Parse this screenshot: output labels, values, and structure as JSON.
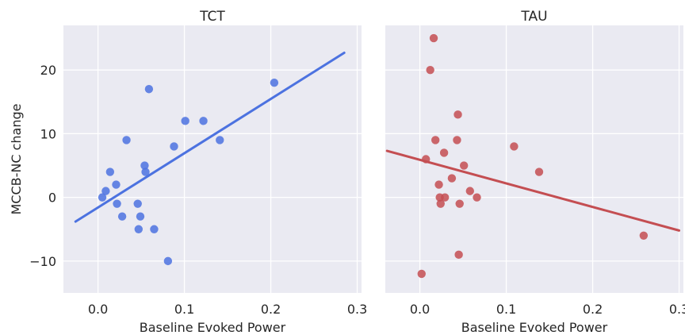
{
  "chart_data": [
    {
      "type": "scatter",
      "title": "TCT",
      "xlabel": "Baseline Evoked Power",
      "ylabel": "MCCB-NC change",
      "xlim": [
        -0.04,
        0.305
      ],
      "ylim": [
        -15,
        27
      ],
      "xticks": [
        0.0,
        0.1,
        0.2,
        0.3
      ],
      "xtick_labels": [
        "0.0",
        "0.1",
        "0.2",
        "0.3"
      ],
      "yticks": [
        -10,
        0,
        10,
        20
      ],
      "ytick_labels": [
        "−10",
        "0",
        "10",
        "20"
      ],
      "grid": true,
      "color": "#4c72e0",
      "points": [
        {
          "x": 0.005,
          "y": 0
        },
        {
          "x": 0.009,
          "y": 1
        },
        {
          "x": 0.014,
          "y": 4
        },
        {
          "x": 0.021,
          "y": 2
        },
        {
          "x": 0.022,
          "y": -1
        },
        {
          "x": 0.028,
          "y": -3
        },
        {
          "x": 0.033,
          "y": 9
        },
        {
          "x": 0.046,
          "y": -1
        },
        {
          "x": 0.047,
          "y": -5
        },
        {
          "x": 0.049,
          "y": -3
        },
        {
          "x": 0.054,
          "y": 5
        },
        {
          "x": 0.055,
          "y": 4
        },
        {
          "x": 0.059,
          "y": 17
        },
        {
          "x": 0.065,
          "y": -5
        },
        {
          "x": 0.081,
          "y": -10
        },
        {
          "x": 0.088,
          "y": 8
        },
        {
          "x": 0.101,
          "y": 12
        },
        {
          "x": 0.122,
          "y": 12
        },
        {
          "x": 0.141,
          "y": 9
        },
        {
          "x": 0.204,
          "y": 18
        }
      ],
      "fit": {
        "x": [
          -0.026,
          0.285
        ],
        "y": [
          -3.8,
          22.7
        ]
      }
    },
    {
      "type": "scatter",
      "title": "TAU",
      "xlabel": "Baseline Evoked Power",
      "ylabel": "",
      "xlim": [
        -0.04,
        0.305
      ],
      "ylim": [
        -15,
        27
      ],
      "xticks": [
        0.0,
        0.1,
        0.2,
        0.3
      ],
      "xtick_labels": [
        "0.0",
        "0.1",
        "0.2",
        "0.3"
      ],
      "yticks": [
        -10,
        0,
        10,
        20
      ],
      "ytick_labels": [],
      "grid": true,
      "color": "#c44e52",
      "points": [
        {
          "x": 0.002,
          "y": -12
        },
        {
          "x": 0.007,
          "y": 6
        },
        {
          "x": 0.012,
          "y": 20
        },
        {
          "x": 0.016,
          "y": 25
        },
        {
          "x": 0.018,
          "y": 9
        },
        {
          "x": 0.022,
          "y": 2
        },
        {
          "x": 0.023,
          "y": 0
        },
        {
          "x": 0.024,
          "y": -1
        },
        {
          "x": 0.028,
          "y": 7
        },
        {
          "x": 0.029,
          "y": 0
        },
        {
          "x": 0.037,
          "y": 3
        },
        {
          "x": 0.043,
          "y": 9
        },
        {
          "x": 0.044,
          "y": 13
        },
        {
          "x": 0.045,
          "y": -9
        },
        {
          "x": 0.046,
          "y": -1
        },
        {
          "x": 0.051,
          "y": 5
        },
        {
          "x": 0.058,
          "y": 1
        },
        {
          "x": 0.066,
          "y": 0
        },
        {
          "x": 0.109,
          "y": 8
        },
        {
          "x": 0.138,
          "y": 4
        },
        {
          "x": 0.259,
          "y": -6
        }
      ],
      "fit": {
        "x": [
          -0.038,
          0.3
        ],
        "y": [
          7.3,
          -5.2
        ]
      }
    }
  ]
}
